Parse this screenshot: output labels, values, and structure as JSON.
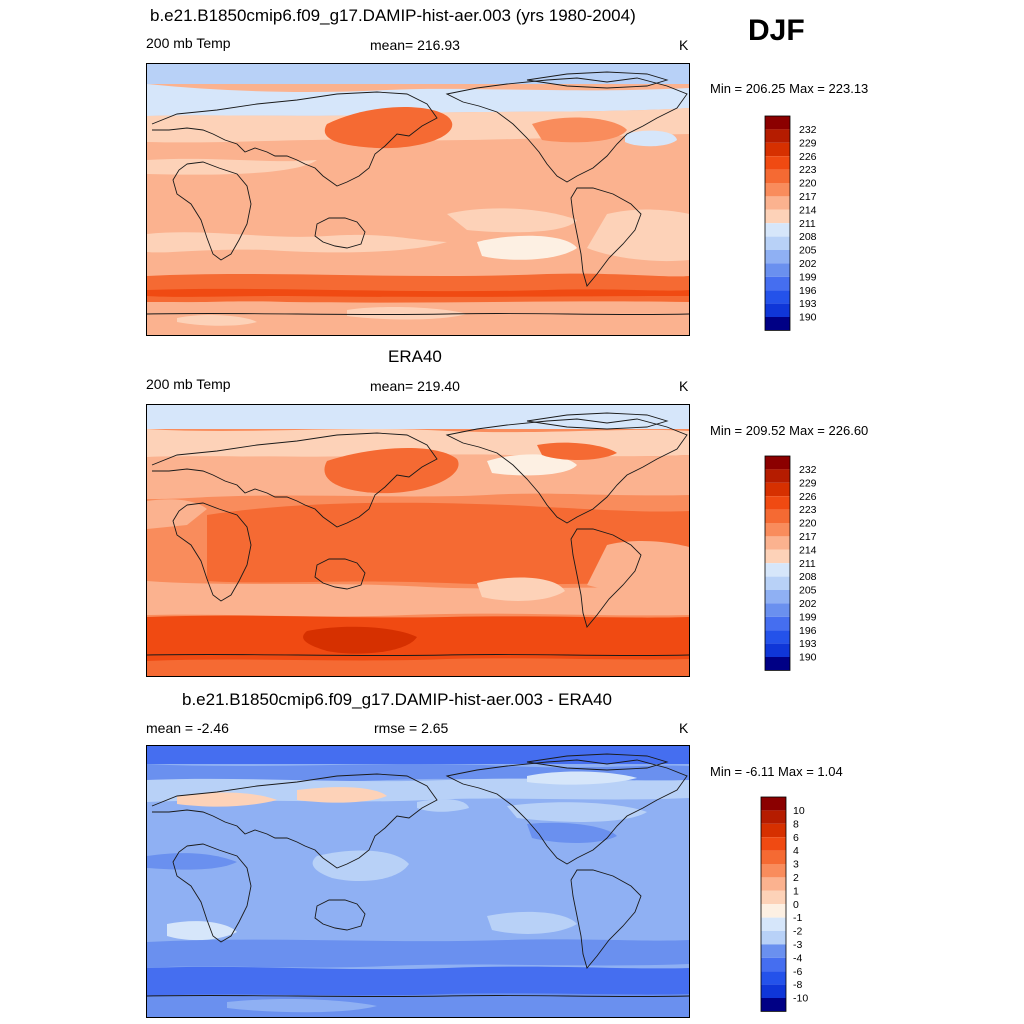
{
  "season": "DJF",
  "panels": [
    {
      "title": "b.e21.B1850cmip6.f09_g17.DAMIP-hist-aer.003 (yrs 1980-2004)",
      "left_label": "200 mb Temp",
      "center_label": "mean= 216.93",
      "units": "K",
      "minmax": "Min = 206.25 Max = 223.13",
      "colorbar_labels": [
        "232",
        "229",
        "226",
        "223",
        "220",
        "217",
        "214",
        "211",
        "208",
        "205",
        "202",
        "199",
        "196",
        "193",
        "190"
      ]
    },
    {
      "title": "ERA40",
      "left_label": "200 mb Temp",
      "center_label": "mean= 219.40",
      "units": "K",
      "minmax": "Min = 209.52 Max = 226.60",
      "colorbar_labels": [
        "232",
        "229",
        "226",
        "223",
        "220",
        "217",
        "214",
        "211",
        "208",
        "205",
        "202",
        "199",
        "196",
        "193",
        "190"
      ]
    },
    {
      "title": "b.e21.B1850cmip6.f09_g17.DAMIP-hist-aer.003 - ERA40",
      "left_label": "mean =  -2.46",
      "center_label": "rmse =   2.65",
      "units": "K",
      "minmax": "Min =  -6.11 Max =   1.04",
      "colorbar_labels": [
        "10",
        "8",
        "6",
        "4",
        "3",
        "2",
        "1",
        "0",
        "-1",
        "-2",
        "-3",
        "-4",
        "-6",
        "-8",
        "-10"
      ]
    }
  ],
  "colors": {
    "scale": [
      "#8b0000",
      "#b51c00",
      "#d63000",
      "#f04a12",
      "#f56a33",
      "#f98c5c",
      "#fbb28f",
      "#fdd2b8",
      "#fdf0e3",
      "#d6e6fa",
      "#b8d1f7",
      "#8fb0f3",
      "#6a90ef",
      "#456ef0",
      "#2452ea",
      "#0f36d8",
      "#001ea8",
      "#000085"
    ],
    "land_outline": "#1a1a1a"
  }
}
